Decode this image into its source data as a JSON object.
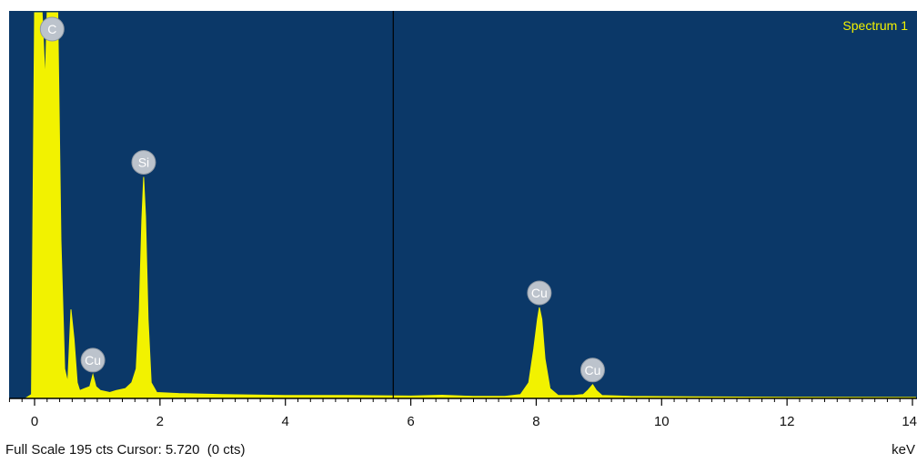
{
  "chart_data": {
    "type": "area",
    "series_name": "Spectrum 1",
    "xlabel": "keV",
    "xlim": [
      -0.6,
      14.05
    ],
    "ylim": [
      0,
      195
    ],
    "x_ticks": [
      0,
      2,
      4,
      6,
      8,
      10,
      12,
      14
    ],
    "x_tick_labels": [
      "0",
      "2",
      "4",
      "6",
      "8",
      "10",
      "12",
      "14"
    ],
    "grid": false,
    "legend": "top-right",
    "peaks": [
      {
        "element": "C",
        "x": 0.28,
        "y": 195
      },
      {
        "element": "Cu",
        "x": 0.93,
        "y": 12
      },
      {
        "element": "Si",
        "x": 1.74,
        "y": 112
      },
      {
        "element": "Cu",
        "x": 8.05,
        "y": 46
      },
      {
        "element": "Cu",
        "x": 8.9,
        "y": 7
      }
    ],
    "points": [
      [
        -0.15,
        0
      ],
      [
        -0.05,
        2
      ],
      [
        0.0,
        195
      ],
      [
        0.12,
        195
      ],
      [
        0.17,
        160
      ],
      [
        0.2,
        195
      ],
      [
        0.37,
        195
      ],
      [
        0.42,
        80
      ],
      [
        0.48,
        15
      ],
      [
        0.53,
        8
      ],
      [
        0.58,
        45
      ],
      [
        0.63,
        30
      ],
      [
        0.68,
        8
      ],
      [
        0.72,
        4
      ],
      [
        0.8,
        5
      ],
      [
        0.88,
        6
      ],
      [
        0.93,
        12
      ],
      [
        0.98,
        6
      ],
      [
        1.05,
        4
      ],
      [
        1.2,
        3
      ],
      [
        1.3,
        4
      ],
      [
        1.45,
        5
      ],
      [
        1.55,
        8
      ],
      [
        1.62,
        15
      ],
      [
        1.67,
        45
      ],
      [
        1.71,
        90
      ],
      [
        1.74,
        112
      ],
      [
        1.77,
        92
      ],
      [
        1.81,
        40
      ],
      [
        1.86,
        8
      ],
      [
        1.95,
        3
      ],
      [
        2.3,
        2.5
      ],
      [
        3.0,
        2
      ],
      [
        4.0,
        1.5
      ],
      [
        5.0,
        1.5
      ],
      [
        6.0,
        1.2
      ],
      [
        6.5,
        1.6
      ],
      [
        7.0,
        1
      ],
      [
        7.5,
        1
      ],
      [
        7.75,
        2
      ],
      [
        7.88,
        8
      ],
      [
        7.96,
        25
      ],
      [
        8.02,
        40
      ],
      [
        8.05,
        46
      ],
      [
        8.09,
        40
      ],
      [
        8.14,
        20
      ],
      [
        8.22,
        5
      ],
      [
        8.35,
        1.5
      ],
      [
        8.6,
        1.5
      ],
      [
        8.75,
        2
      ],
      [
        8.82,
        4
      ],
      [
        8.9,
        7
      ],
      [
        8.96,
        4
      ],
      [
        9.05,
        1.5
      ],
      [
        9.5,
        1
      ],
      [
        10.5,
        0.8
      ],
      [
        12.0,
        0.6
      ],
      [
        14.05,
        0.5
      ]
    ]
  },
  "cursor": {
    "x": 5.72
  },
  "status": {
    "full_scale_text": "Full Scale 195 cts Cursor: 5.720  (0 cts)",
    "unit_text": "keV"
  },
  "colors": {
    "plot_bg": "#0b3868",
    "spectrum": "#f2f200",
    "series_label": "#f2f200",
    "peak_marker": "#bcc3cc",
    "axis": "#000000"
  }
}
